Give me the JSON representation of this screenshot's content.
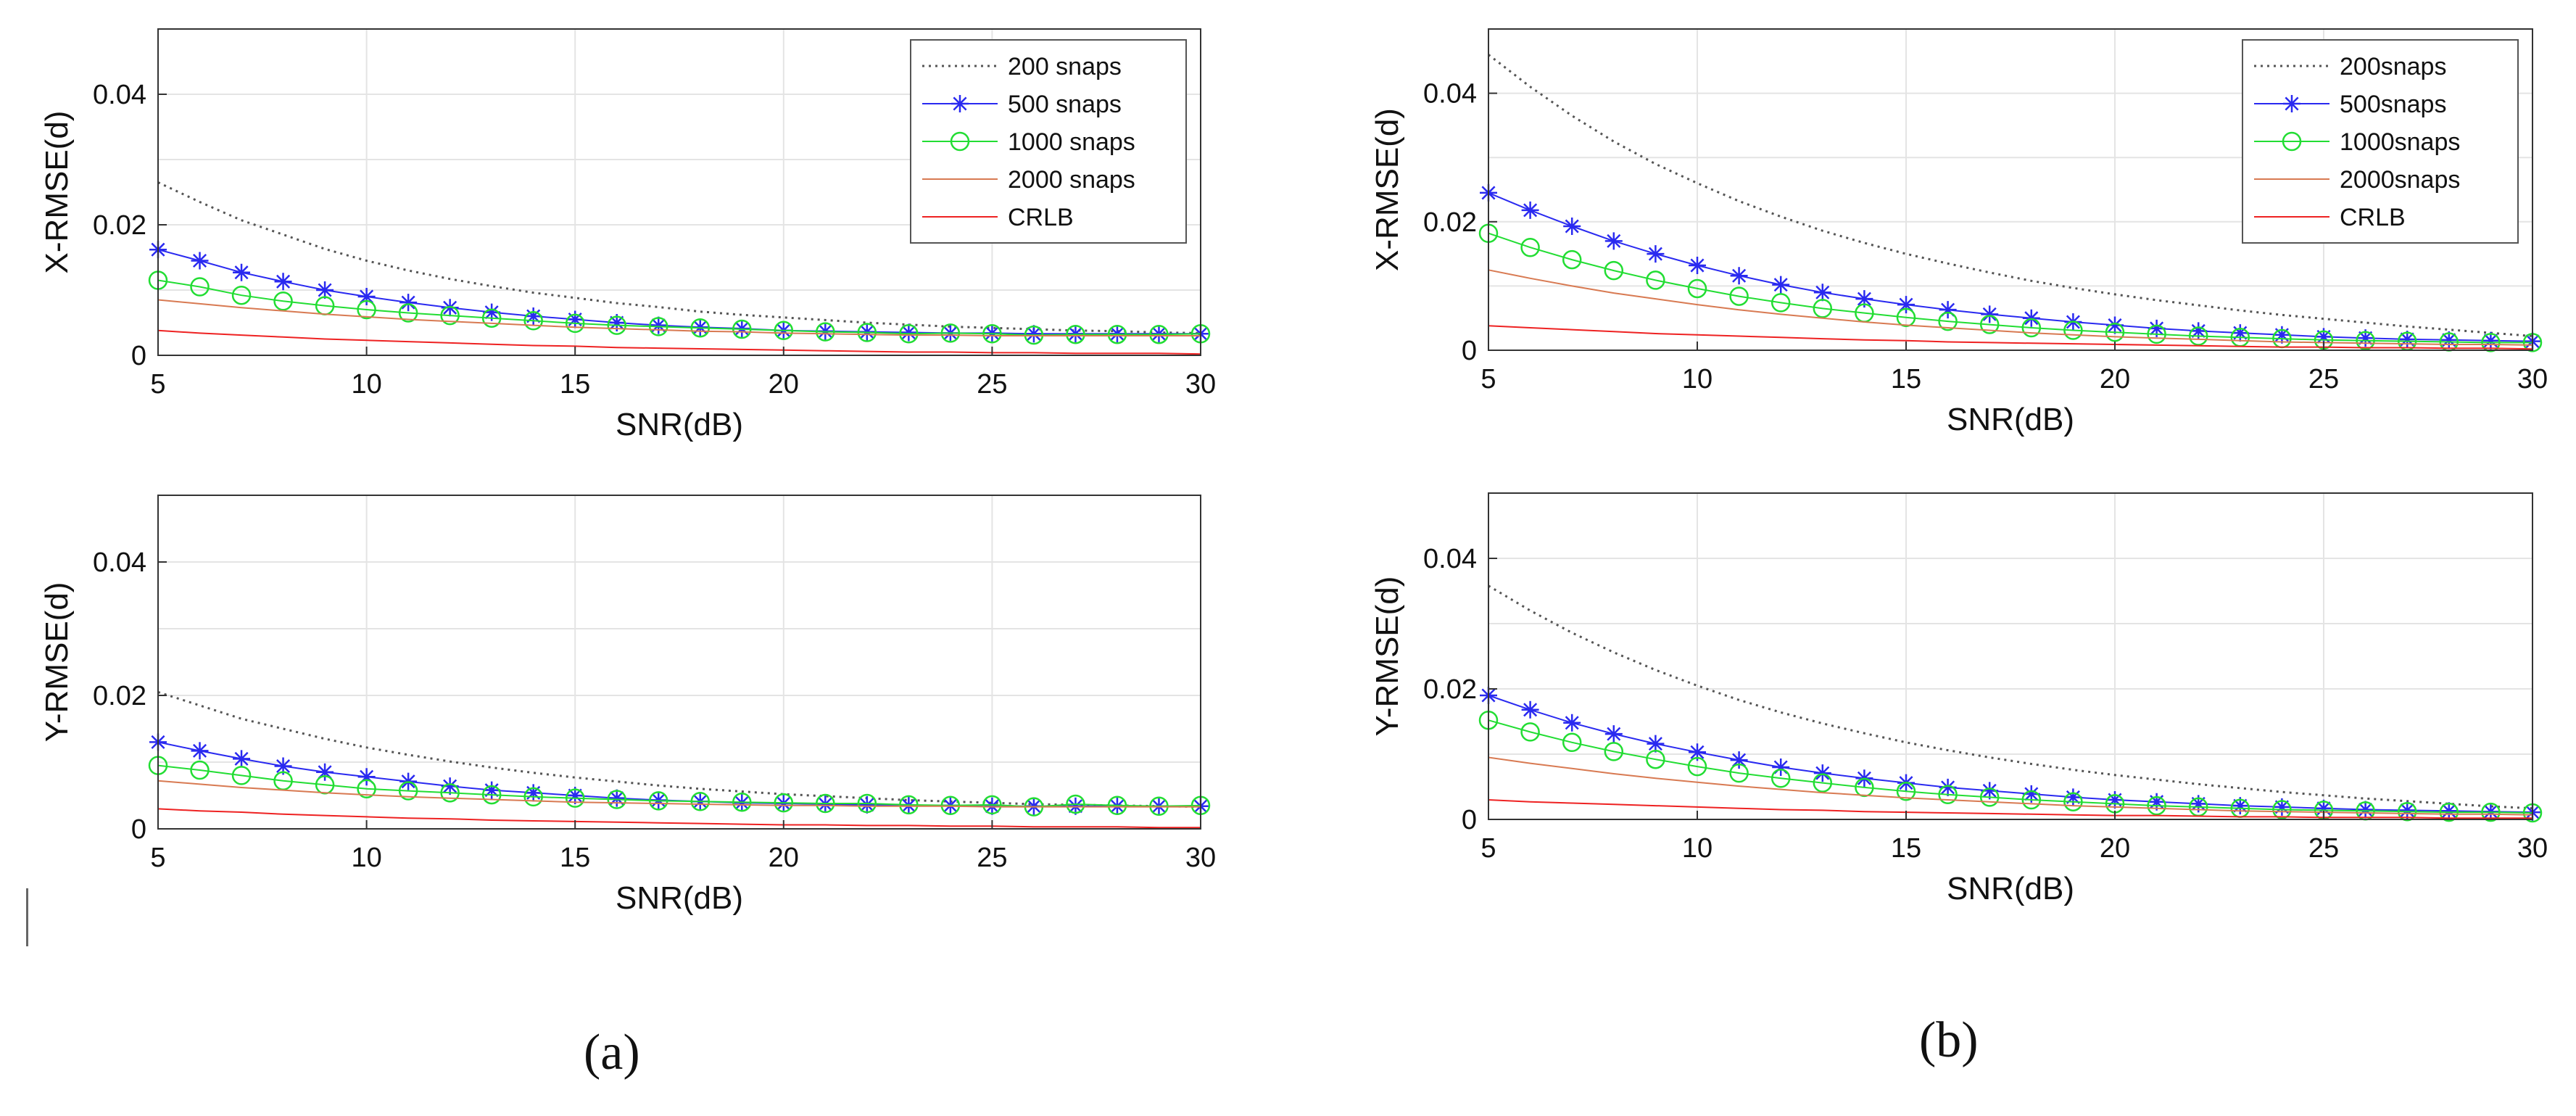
{
  "panel_labels": {
    "a": "(a)",
    "b": "(b)"
  },
  "colors": {
    "s200": "#555555",
    "s500": "#2a2af0",
    "s1000": "#22dd33",
    "s2000": "#d87a52",
    "crlb": "#ee2222",
    "grid": "#e4e4e4",
    "axis": "#333333"
  },
  "chart_data": [
    {
      "id": "a-x",
      "type": "line",
      "panel": "a",
      "xlabel": "SNR(dB)",
      "ylabel": "X-RMSE(d)",
      "xlim": [
        5,
        30
      ],
      "ylim": [
        0,
        0.05
      ],
      "xticks": [
        5,
        10,
        15,
        20,
        25,
        30
      ],
      "xtick_labels": [
        "5",
        "10",
        "15",
        "20",
        "25",
        "30"
      ],
      "yticks": [
        0,
        0.02,
        0.04
      ],
      "ytick_labels": [
        "0",
        "0.02",
        "0.04"
      ],
      "grid": true,
      "legend": {
        "position": "top-right",
        "entries": [
          "200 snaps",
          "500 snaps",
          "1000 snaps",
          "2000 snaps",
          "CRLB"
        ]
      },
      "x": [
        5,
        6,
        7,
        8,
        9,
        10,
        11,
        12,
        13,
        14,
        15,
        16,
        17,
        18,
        19,
        20,
        21,
        22,
        23,
        24,
        25,
        26,
        27,
        28,
        29,
        30
      ],
      "series": [
        {
          "name": "200 snaps",
          "style": "s200",
          "values": [
            0.0265,
            0.0235,
            0.0207,
            0.0185,
            0.0163,
            0.0145,
            0.013,
            0.0117,
            0.0106,
            0.0096,
            0.0088,
            0.008,
            0.0074,
            0.0067,
            0.0062,
            0.0058,
            0.0054,
            0.005,
            0.0047,
            0.0044,
            0.0042,
            0.004,
            0.0038,
            0.0037,
            0.0035,
            0.0034
          ]
        },
        {
          "name": "500 snaps",
          "style": "s500",
          "values": [
            0.0162,
            0.0145,
            0.0127,
            0.0113,
            0.01,
            0.009,
            0.0081,
            0.0073,
            0.0066,
            0.006,
            0.0055,
            0.005,
            0.0046,
            0.0043,
            0.0041,
            0.0038,
            0.0037,
            0.0036,
            0.0035,
            0.0034,
            0.0034,
            0.0033,
            0.0033,
            0.0033,
            0.0033,
            0.0033
          ]
        },
        {
          "name": "1000 snaps",
          "style": "s1000",
          "values": [
            0.0115,
            0.0105,
            0.0092,
            0.0083,
            0.0076,
            0.007,
            0.0065,
            0.0061,
            0.0057,
            0.0053,
            0.0049,
            0.0046,
            0.0044,
            0.0042,
            0.004,
            0.0038,
            0.0036,
            0.0035,
            0.0033,
            0.0034,
            0.0033,
            0.0031,
            0.0032,
            0.0032,
            0.0032,
            0.0033
          ]
        },
        {
          "name": "2000 snaps",
          "style": "s2000",
          "values": [
            0.0085,
            0.0079,
            0.0073,
            0.0068,
            0.0063,
            0.0059,
            0.0055,
            0.0052,
            0.0049,
            0.0046,
            0.0043,
            0.0041,
            0.0039,
            0.0037,
            0.0036,
            0.0034,
            0.0033,
            0.0032,
            0.0031,
            0.0031,
            0.003,
            0.003,
            0.003,
            0.003,
            0.003,
            0.003
          ]
        },
        {
          "name": "CRLB",
          "style": "crlb",
          "values": [
            0.0038,
            0.0034,
            0.0031,
            0.0028,
            0.0025,
            0.0023,
            0.0021,
            0.0019,
            0.0017,
            0.0015,
            0.0014,
            0.0012,
            0.0011,
            0.001,
            0.0009,
            0.0008,
            0.0007,
            0.0006,
            0.0005,
            0.0005,
            0.0004,
            0.0004,
            0.0003,
            0.0003,
            0.0003,
            0.0002
          ]
        }
      ]
    },
    {
      "id": "a-y",
      "type": "line",
      "panel": "a",
      "xlabel": "SNR(dB)",
      "ylabel": "Y-RMSE(d)",
      "xlim": [
        5,
        30
      ],
      "ylim": [
        0,
        0.05
      ],
      "xticks": [
        5,
        10,
        15,
        20,
        25,
        30
      ],
      "xtick_labels": [
        "5",
        "10",
        "15",
        "20",
        "25",
        "30"
      ],
      "yticks": [
        0,
        0.02,
        0.04
      ],
      "ytick_labels": [
        "0",
        "0.02",
        "0.04"
      ],
      "grid": true,
      "x": [
        5,
        6,
        7,
        8,
        9,
        10,
        11,
        12,
        13,
        14,
        15,
        16,
        17,
        18,
        19,
        20,
        21,
        22,
        23,
        24,
        25,
        26,
        27,
        28,
        29,
        30
      ],
      "series": [
        {
          "name": "200 snaps",
          "style": "s200",
          "values": [
            0.0205,
            0.0185,
            0.0165,
            0.015,
            0.0135,
            0.0122,
            0.0111,
            0.0101,
            0.0092,
            0.0084,
            0.0077,
            0.0071,
            0.0065,
            0.006,
            0.0056,
            0.0052,
            0.0049,
            0.0046,
            0.0043,
            0.0041,
            0.0039,
            0.0037,
            0.0036,
            0.0035,
            0.0034,
            0.0033
          ]
        },
        {
          "name": "500 snaps",
          "style": "s500",
          "values": [
            0.013,
            0.0117,
            0.0105,
            0.0094,
            0.0085,
            0.0078,
            0.0071,
            0.0064,
            0.0058,
            0.0054,
            0.005,
            0.0046,
            0.0043,
            0.0041,
            0.0039,
            0.0038,
            0.0037,
            0.0036,
            0.0035,
            0.0035,
            0.0034,
            0.0034,
            0.0034,
            0.0034,
            0.0034,
            0.0034
          ]
        },
        {
          "name": "1000 snaps",
          "style": "s1000",
          "values": [
            0.0095,
            0.0088,
            0.008,
            0.0072,
            0.0066,
            0.006,
            0.0057,
            0.0054,
            0.0051,
            0.0048,
            0.0046,
            0.0044,
            0.0042,
            0.0041,
            0.004,
            0.0039,
            0.0038,
            0.0038,
            0.0036,
            0.0035,
            0.0036,
            0.0033,
            0.0037,
            0.0035,
            0.0034,
            0.0035
          ]
        },
        {
          "name": "2000 snaps",
          "style": "s2000",
          "values": [
            0.0072,
            0.0067,
            0.0062,
            0.0058,
            0.0054,
            0.0051,
            0.0048,
            0.0046,
            0.0044,
            0.0042,
            0.004,
            0.0039,
            0.0038,
            0.0037,
            0.0036,
            0.0035,
            0.0035,
            0.0034,
            0.0034,
            0.0034,
            0.0033,
            0.0033,
            0.0033,
            0.0033,
            0.0033,
            0.0033
          ]
        },
        {
          "name": "CRLB",
          "style": "crlb",
          "values": [
            0.003,
            0.0027,
            0.0025,
            0.0022,
            0.002,
            0.0018,
            0.0016,
            0.0015,
            0.0013,
            0.0012,
            0.0011,
            0.001,
            0.0009,
            0.0008,
            0.0007,
            0.0006,
            0.0006,
            0.0005,
            0.0005,
            0.0004,
            0.0004,
            0.0003,
            0.0003,
            0.0003,
            0.0002,
            0.0002
          ]
        }
      ]
    },
    {
      "id": "b-x",
      "type": "line",
      "panel": "b",
      "xlabel": "SNR(dB)",
      "ylabel": "X-RMSE(d)",
      "xlim": [
        5,
        30
      ],
      "ylim": [
        0,
        0.05
      ],
      "xticks": [
        5,
        10,
        15,
        20,
        25,
        30
      ],
      "xtick_labels": [
        "5",
        "10",
        "15",
        "20",
        "25",
        "30"
      ],
      "yticks": [
        0,
        0.02,
        0.04
      ],
      "ytick_labels": [
        "0",
        "0.02",
        "0.04"
      ],
      "grid": true,
      "legend": {
        "position": "top-right",
        "entries": [
          "200snaps",
          "500snaps",
          "1000snaps",
          "2000snaps",
          "CRLB"
        ]
      },
      "x": [
        5,
        6,
        7,
        8,
        9,
        10,
        11,
        12,
        13,
        14,
        15,
        16,
        17,
        18,
        19,
        20,
        21,
        22,
        23,
        24,
        25,
        26,
        27,
        28,
        29,
        30
      ],
      "series": [
        {
          "name": "200snaps",
          "style": "s200",
          "values": [
            0.046,
            0.041,
            0.0365,
            0.0325,
            0.029,
            0.026,
            0.0232,
            0.0208,
            0.0186,
            0.0167,
            0.015,
            0.0135,
            0.0121,
            0.0108,
            0.0097,
            0.0087,
            0.0078,
            0.007,
            0.0062,
            0.0055,
            0.0049,
            0.0043,
            0.0037,
            0.0032,
            0.0027,
            0.0022
          ]
        },
        {
          "name": "500snaps",
          "style": "s500",
          "values": [
            0.0245,
            0.0218,
            0.0193,
            0.017,
            0.015,
            0.0132,
            0.0116,
            0.0102,
            0.009,
            0.008,
            0.0071,
            0.0063,
            0.0056,
            0.005,
            0.0044,
            0.0039,
            0.0034,
            0.003,
            0.0027,
            0.0024,
            0.0021,
            0.0019,
            0.0017,
            0.0016,
            0.0015,
            0.0014
          ]
        },
        {
          "name": "1000snaps",
          "style": "s1000",
          "values": [
            0.0182,
            0.016,
            0.0141,
            0.0124,
            0.0109,
            0.0096,
            0.0084,
            0.0074,
            0.0065,
            0.0058,
            0.0051,
            0.0045,
            0.004,
            0.0035,
            0.0031,
            0.0028,
            0.0025,
            0.0022,
            0.002,
            0.0018,
            0.0016,
            0.0015,
            0.0014,
            0.0013,
            0.0012,
            0.0012
          ]
        },
        {
          "name": "2000snaps",
          "style": "s2000",
          "values": [
            0.0125,
            0.0112,
            0.01,
            0.0089,
            0.008,
            0.0071,
            0.0063,
            0.0056,
            0.005,
            0.0044,
            0.0039,
            0.0035,
            0.0031,
            0.0027,
            0.0024,
            0.0021,
            0.0019,
            0.0017,
            0.0015,
            0.0013,
            0.0012,
            0.0011,
            0.001,
            0.0009,
            0.0009,
            0.0008
          ]
        },
        {
          "name": "CRLB",
          "style": "crlb",
          "values": [
            0.0038,
            0.0035,
            0.0032,
            0.0029,
            0.0026,
            0.0024,
            0.0022,
            0.002,
            0.0018,
            0.0016,
            0.0015,
            0.0013,
            0.0012,
            0.0011,
            0.001,
            0.0009,
            0.0008,
            0.0007,
            0.0006,
            0.0005,
            0.0005,
            0.0004,
            0.0004,
            0.0003,
            0.0003,
            0.0002
          ]
        }
      ]
    },
    {
      "id": "b-y",
      "type": "line",
      "panel": "b",
      "xlabel": "SNR(dB)",
      "ylabel": "Y-RMSE(d)",
      "xlim": [
        5,
        30
      ],
      "ylim": [
        0,
        0.05
      ],
      "xticks": [
        5,
        10,
        15,
        20,
        25,
        30
      ],
      "xtick_labels": [
        "5",
        "10",
        "15",
        "20",
        "25",
        "30"
      ],
      "yticks": [
        0,
        0.02,
        0.04
      ],
      "ytick_labels": [
        "0",
        "0.02",
        "0.04"
      ],
      "grid": true,
      "x": [
        5,
        6,
        7,
        8,
        9,
        10,
        11,
        12,
        13,
        14,
        15,
        16,
        17,
        18,
        19,
        20,
        21,
        22,
        23,
        24,
        25,
        26,
        27,
        28,
        29,
        30
      ],
      "series": [
        {
          "name": "200snaps",
          "style": "s200",
          "values": [
            0.0358,
            0.032,
            0.0286,
            0.0256,
            0.0229,
            0.0205,
            0.0183,
            0.0164,
            0.0147,
            0.0132,
            0.0118,
            0.0106,
            0.0095,
            0.0085,
            0.0076,
            0.0068,
            0.0061,
            0.0054,
            0.0048,
            0.0042,
            0.0037,
            0.0032,
            0.0028,
            0.0024,
            0.002,
            0.0017
          ]
        },
        {
          "name": "500snaps",
          "style": "s500",
          "values": [
            0.019,
            0.0168,
            0.0148,
            0.0131,
            0.0116,
            0.0103,
            0.0091,
            0.008,
            0.0071,
            0.0063,
            0.0056,
            0.0049,
            0.0044,
            0.0039,
            0.0034,
            0.003,
            0.0027,
            0.0024,
            0.0021,
            0.0019,
            0.0017,
            0.0015,
            0.0014,
            0.0013,
            0.0012,
            0.0011
          ]
        },
        {
          "name": "1000snaps",
          "style": "s1000",
          "values": [
            0.0152,
            0.0134,
            0.0118,
            0.0104,
            0.0092,
            0.0081,
            0.0071,
            0.0063,
            0.0056,
            0.0049,
            0.0043,
            0.0038,
            0.0034,
            0.003,
            0.0027,
            0.0024,
            0.0021,
            0.0019,
            0.0017,
            0.0015,
            0.0014,
            0.0013,
            0.0012,
            0.0011,
            0.0011,
            0.001
          ]
        },
        {
          "name": "2000snaps",
          "style": "s2000",
          "values": [
            0.0095,
            0.0086,
            0.0078,
            0.007,
            0.0063,
            0.0057,
            0.0051,
            0.0046,
            0.0041,
            0.0037,
            0.0033,
            0.003,
            0.0027,
            0.0024,
            0.0021,
            0.0019,
            0.0017,
            0.0015,
            0.0013,
            0.0012,
            0.0011,
            0.001,
            0.0009,
            0.0008,
            0.0008,
            0.0007
          ]
        },
        {
          "name": "CRLB",
          "style": "crlb",
          "values": [
            0.003,
            0.0027,
            0.0025,
            0.0023,
            0.0021,
            0.0019,
            0.0017,
            0.0015,
            0.0014,
            0.0012,
            0.0011,
            0.001,
            0.0009,
            0.0008,
            0.0007,
            0.0006,
            0.0006,
            0.0005,
            0.0004,
            0.0004,
            0.0003,
            0.0003,
            0.0003,
            0.0002,
            0.0002,
            0.0002
          ]
        }
      ]
    }
  ]
}
